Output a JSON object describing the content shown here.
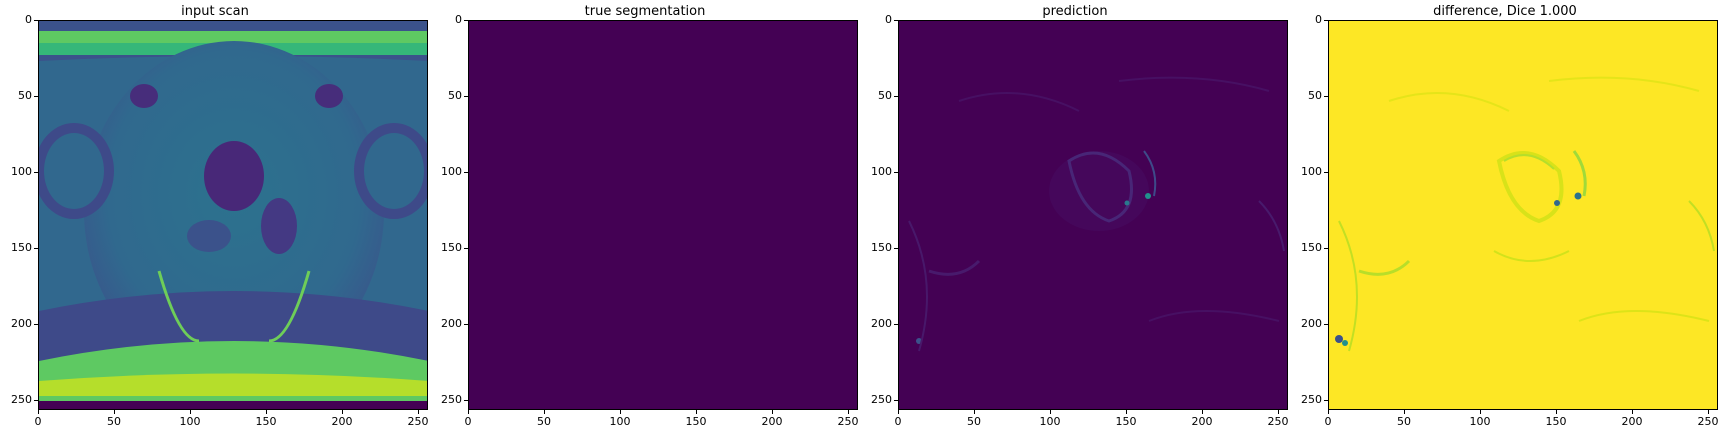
{
  "panels": [
    {
      "title": "input scan"
    },
    {
      "title": "true segmentation"
    },
    {
      "title": "prediction"
    },
    {
      "title": "difference, Dice 1.000"
    }
  ],
  "axes": {
    "xticks": [
      "0",
      "50",
      "100",
      "150",
      "200",
      "250"
    ],
    "yticks": [
      "0",
      "50",
      "100",
      "150",
      "200",
      "250"
    ],
    "xlim": [
      0,
      256
    ],
    "ylim": [
      256,
      0
    ]
  },
  "colors": {
    "viridis_dark": "#440154",
    "viridis_blue": "#31688e",
    "viridis_teal": "#21908d",
    "viridis_green": "#35b779",
    "viridis_yellow": "#fde725"
  }
}
